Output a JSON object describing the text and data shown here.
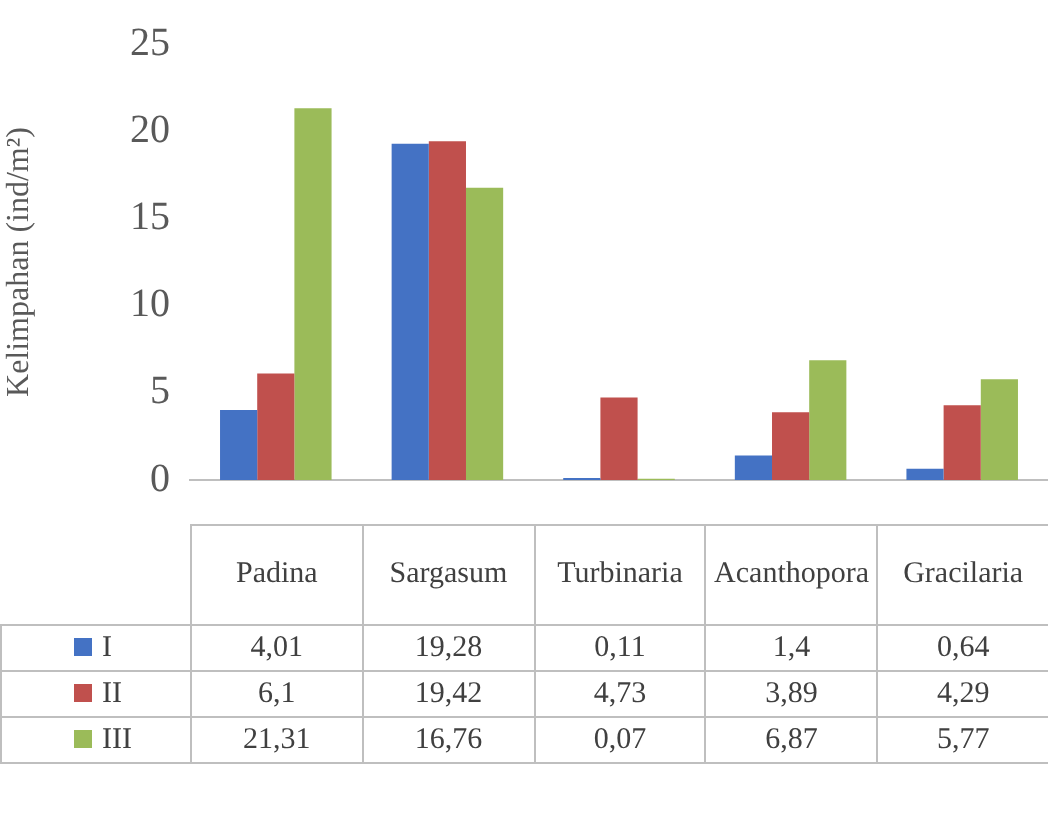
{
  "chart_data": {
    "type": "bar",
    "ylabel": "Kelimpahan (ind/m²)",
    "categories": [
      "Padina",
      "Sargasum",
      "Turbinaria",
      "Acanthopora",
      "Gracilaria"
    ],
    "series": [
      {
        "name": "I",
        "color": "#4472c4",
        "values": [
          4.01,
          19.28,
          0.11,
          1.4,
          0.64
        ],
        "value_labels": [
          "4,01",
          "19,28",
          "0,11",
          "1,4",
          "0,64"
        ]
      },
      {
        "name": "II",
        "color": "#c0504d",
        "values": [
          6.1,
          19.42,
          4.73,
          3.89,
          4.29
        ],
        "value_labels": [
          "6,1",
          "19,42",
          "4,73",
          "3,89",
          "4,29"
        ]
      },
      {
        "name": "III",
        "color": "#9bbb59",
        "values": [
          21.31,
          16.76,
          0.07,
          6.87,
          5.77
        ],
        "value_labels": [
          "21,31",
          "16,76",
          "0,07",
          "6,87",
          "5,77"
        ]
      }
    ],
    "ylim": [
      0,
      25
    ],
    "yticks": [
      0,
      5,
      10,
      15,
      20,
      25
    ],
    "grid": false,
    "legend": "bottom"
  }
}
